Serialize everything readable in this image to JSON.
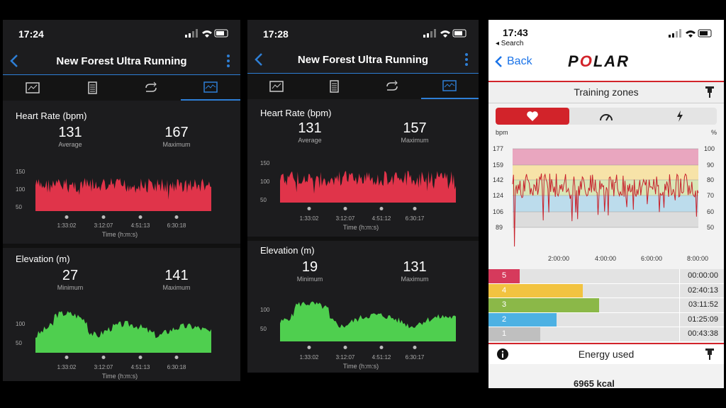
{
  "garmin1": {
    "time": "17:24",
    "title": "New Forest Ultra Running",
    "hr": {
      "title": "Heart Rate (bpm)",
      "avg": "131",
      "avg_label": "Average",
      "max": "167",
      "max_label": "Maximum",
      "yticks": [
        "150",
        "100",
        "50"
      ]
    },
    "elev": {
      "title": "Elevation (m)",
      "min": "27",
      "min_label": "Minimum",
      "max": "141",
      "max_label": "Maximum",
      "yticks": [
        "100",
        "50"
      ]
    },
    "xticks": [
      "1:33:02",
      "3:12:07",
      "4:51:13",
      "6:30:18"
    ],
    "xaxis": "Time (h:m:s)"
  },
  "garmin2": {
    "time": "17:28",
    "title": "New Forest Ultra Running",
    "hr": {
      "title": "Heart Rate (bpm)",
      "avg": "131",
      "avg_label": "Average",
      "max": "157",
      "max_label": "Maximum",
      "yticks": [
        "150",
        "100",
        "50"
      ]
    },
    "elev": {
      "title": "Elevation (m)",
      "min": "19",
      "min_label": "Minimum",
      "max": "131",
      "max_label": "Maximum",
      "yticks": [
        "100",
        "50"
      ]
    },
    "xticks": [
      "1:33:02",
      "3:12:07",
      "4:51:12",
      "6:30:17"
    ],
    "xaxis": "Time (h:m:s)"
  },
  "polar": {
    "time": "17:43",
    "search": "◂ Search",
    "back": "Back",
    "logo": "POLAR",
    "section": "Training zones",
    "left_unit": "bpm",
    "right_unit": "%",
    "left_ticks": [
      "177",
      "159",
      "142",
      "124",
      "106",
      "89"
    ],
    "right_ticks": [
      "100",
      "90",
      "80",
      "70",
      "60",
      "50"
    ],
    "xticks": [
      "2:00:00",
      "4:00:00",
      "6:00:00",
      "8:00:00"
    ],
    "zones": [
      {
        "zone": "5",
        "duration": "00:00:00",
        "fraction": 0.04,
        "color": "#d63a5c"
      },
      {
        "zone": "4",
        "duration": "02:40:13",
        "fraction": 0.4,
        "color": "#f2c340"
      },
      {
        "zone": "3",
        "duration": "03:11:52",
        "fraction": 0.47,
        "color": "#8bb848"
      },
      {
        "zone": "2",
        "duration": "01:25:09",
        "fraction": 0.29,
        "color": "#4db1e3"
      },
      {
        "zone": "1",
        "duration": "00:43:38",
        "fraction": 0.22,
        "color": "#bfbfbf"
      }
    ],
    "energy": "Energy used",
    "energy_value": "6965 kcal"
  },
  "colors": {
    "hr_fill": "#e0344a",
    "elev_fill": "#4fcf4f",
    "accent_blue": "#2e7fd6",
    "polar_red": "#d2232a"
  }
}
